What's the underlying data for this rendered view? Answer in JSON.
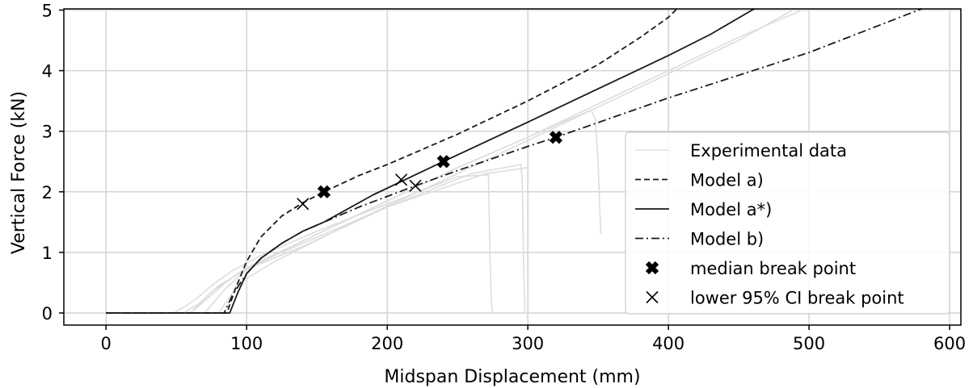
{
  "chart_data": {
    "type": "line",
    "xlabel": "Midspan Displacement (mm)",
    "ylabel": "Vertical Force (kN)",
    "xlim": [
      -30,
      608
    ],
    "ylim": [
      -0.2,
      5.02
    ],
    "xticks": [
      0,
      100,
      200,
      300,
      400,
      500,
      600
    ],
    "yticks": [
      0,
      1,
      2,
      3,
      4,
      5
    ],
    "grid": true,
    "legend_position": "lower-right",
    "colors": {
      "experimental": "#dddddd",
      "model": "#1a1a1a",
      "axis": "#000000",
      "grid": "#d4d4d4"
    },
    "series": [
      {
        "name": "Experimental data",
        "style": "solid",
        "color": "#dddddd",
        "x": [
          0,
          48,
          57,
          65,
          75,
          90,
          110,
          150,
          200,
          250,
          272,
          273,
          274,
          275
        ],
        "y": [
          0,
          0,
          0.12,
          0.25,
          0.45,
          0.7,
          0.95,
          1.35,
          1.8,
          2.25,
          2.28,
          1.0,
          0.2,
          0
        ]
      },
      {
        "name": "",
        "style": "solid",
        "color": "#dddddd",
        "x": [
          0,
          55,
          66,
          80,
          100,
          140,
          200,
          260,
          295,
          296,
          297,
          298
        ],
        "y": [
          0,
          0,
          0.15,
          0.45,
          0.72,
          1.1,
          1.75,
          2.3,
          2.45,
          2.2,
          0.8,
          0
        ]
      },
      {
        "name": "",
        "style": "solid",
        "color": "#dddddd",
        "x": [
          0,
          60,
          70,
          85,
          100,
          150,
          200,
          270,
          300
        ],
        "y": [
          0,
          0,
          0.2,
          0.5,
          0.75,
          1.25,
          1.75,
          2.3,
          2.4
        ]
      },
      {
        "name": "",
        "style": "solid",
        "color": "#dddddd",
        "x": [
          0,
          60,
          75,
          100,
          150,
          200,
          250,
          300,
          345,
          348,
          350,
          351,
          352
        ],
        "y": [
          0,
          0,
          0.35,
          0.75,
          1.3,
          1.85,
          2.4,
          2.9,
          3.35,
          3.2,
          2.5,
          1.8,
          1.3
        ]
      },
      {
        "name": "",
        "style": "solid",
        "color": "#dddddd",
        "x": [
          0,
          70,
          85,
          100,
          150,
          200,
          250,
          300,
          350,
          400,
          450,
          497
        ],
        "y": [
          0,
          0,
          0.4,
          0.72,
          1.3,
          1.85,
          2.4,
          2.9,
          3.45,
          4.0,
          4.55,
          5.02
        ]
      },
      {
        "name": "",
        "style": "solid",
        "color": "#dddddd",
        "x": [
          0,
          80,
          95,
          120,
          180,
          250,
          300,
          350,
          400,
          450,
          490
        ],
        "y": [
          0,
          0,
          0.5,
          0.85,
          1.55,
          2.3,
          2.85,
          3.4,
          3.95,
          4.5,
          5.02
        ]
      },
      {
        "name": "Model a)",
        "style": "dashed",
        "color": "#1a1a1a",
        "x": [
          0,
          86,
          92,
          100,
          110,
          125,
          140,
          155,
          180,
          200,
          250,
          300,
          350,
          380,
          400,
          406
        ],
        "y": [
          0,
          0,
          0.4,
          0.85,
          1.25,
          1.6,
          1.82,
          2.0,
          2.27,
          2.45,
          2.95,
          3.5,
          4.1,
          4.55,
          4.88,
          5.02
        ]
      },
      {
        "name": "Model a*)",
        "style": "solid",
        "color": "#1a1a1a",
        "x": [
          0,
          88,
          94,
          100,
          110,
          125,
          140,
          155,
          190,
          240,
          300,
          350,
          400,
          430,
          461
        ],
        "y": [
          0,
          0,
          0.35,
          0.65,
          0.9,
          1.15,
          1.35,
          1.5,
          1.95,
          2.5,
          3.15,
          3.7,
          4.25,
          4.6,
          5.02
        ]
      },
      {
        "name": "Model b)",
        "style": "dashdot",
        "color": "#1a1a1a",
        "x": [
          0,
          84,
          90,
          100,
          110,
          125,
          140,
          155,
          180,
          220,
          250,
          300,
          320,
          400,
          500,
          580
        ],
        "y": [
          0,
          0,
          0.3,
          0.65,
          0.9,
          1.15,
          1.35,
          1.5,
          1.75,
          2.1,
          2.35,
          2.75,
          2.9,
          3.55,
          4.3,
          5.02
        ]
      }
    ],
    "markers": [
      {
        "name": "median break point",
        "symbol": "X-filled",
        "points": [
          [
            155,
            2.0
          ],
          [
            240,
            2.5
          ],
          [
            320,
            2.9
          ]
        ]
      },
      {
        "name": "lower 95% CI break point",
        "symbol": "x",
        "points": [
          [
            140,
            1.8
          ],
          [
            210,
            2.2
          ],
          [
            220,
            2.1
          ]
        ]
      }
    ]
  }
}
